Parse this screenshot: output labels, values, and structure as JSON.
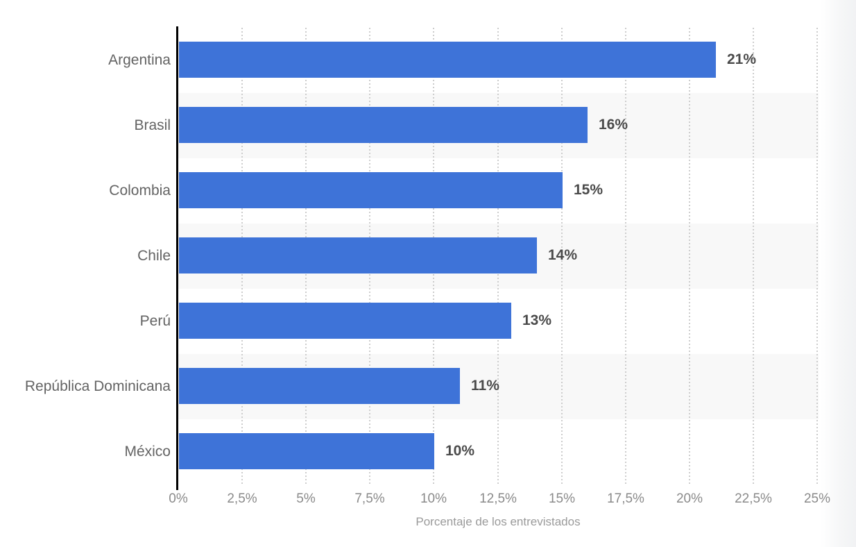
{
  "chart_data": {
    "type": "bar",
    "orientation": "horizontal",
    "categories": [
      "Argentina",
      "Brasil",
      "Colombia",
      "Chile",
      "Perú",
      "República Dominicana",
      "México"
    ],
    "values": [
      21,
      16,
      15,
      14,
      13,
      11,
      10
    ],
    "value_labels": [
      "21%",
      "16%",
      "15%",
      "14%",
      "13%",
      "11%",
      "10%"
    ],
    "title": "",
    "xlabel": "Porcentaje de los entrevistados",
    "ylabel": "",
    "xlim": [
      0,
      25
    ],
    "xticks": [
      0,
      2.5,
      5,
      7.5,
      10,
      12.5,
      15,
      17.5,
      20,
      22.5,
      25
    ],
    "xtick_labels": [
      "0%",
      "2,5%",
      "5%",
      "7,5%",
      "10%",
      "12,5%",
      "15%",
      "17,5%",
      "20%",
      "22,5%",
      "25%"
    ],
    "grid": "vertical-dotted",
    "legend": "none",
    "zebra_rows": [
      1,
      3,
      5
    ]
  },
  "colors": {
    "bar": "#3e73d8",
    "zebra_band": "#f8f8f8",
    "gridline": "#cdcdcd",
    "axis_line": "#000000",
    "category_label": "#636363",
    "value_label": "#4a4a4a",
    "tick_label": "#8a8a8a",
    "axis_title": "#9a9a9a",
    "background": "#ffffff"
  }
}
